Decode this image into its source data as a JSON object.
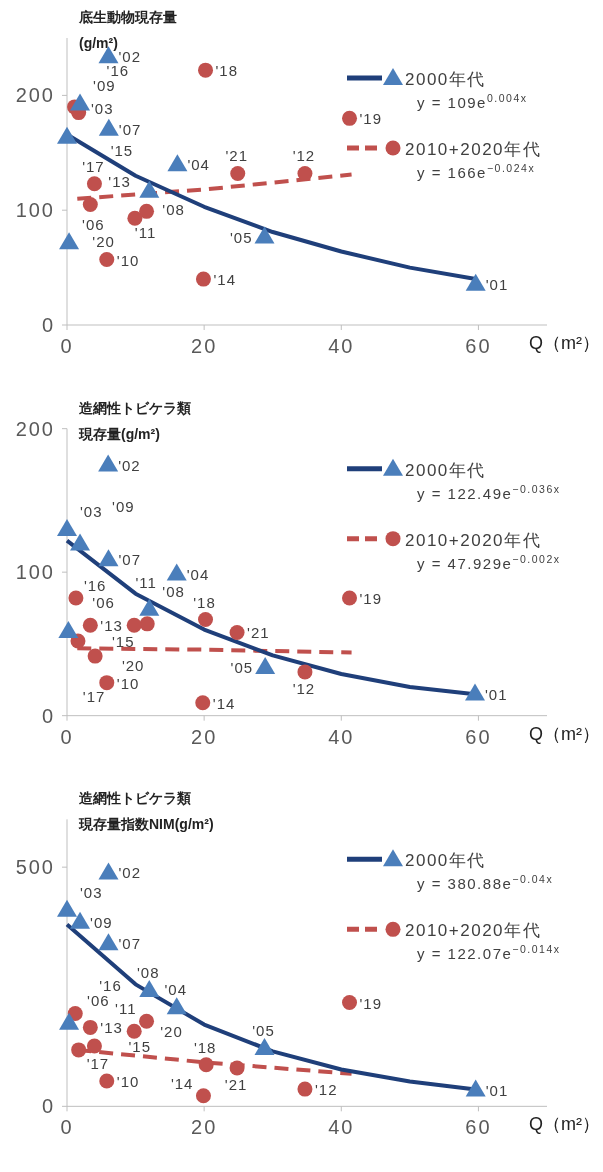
{
  "chart_data": [
    {
      "type": "scatter",
      "title": "底生動物現存量",
      "ylabel": "(g/m²)",
      "xlabel": "Q（m²）",
      "xlim": [
        0,
        70
      ],
      "xticks": [
        0,
        20,
        40,
        60
      ],
      "ylim": [
        0,
        250
      ],
      "yticks": [
        0,
        100,
        200
      ],
      "grid": false,
      "legend": "top right",
      "annotations": [
        "y = 109e$^{0.004x}$",
        "y = 166e$^{−0.024x}$",
        {
          "text": "'01",
          "x": 59.6,
          "y": 36
        },
        {
          "text": "'02",
          "x": 6.05,
          "y": 234
        },
        {
          "text": "'03",
          "x": 0,
          "y": 164
        },
        {
          "text": "'04",
          "x": 16.1,
          "y": 140
        },
        {
          "text": "'05",
          "x": 28.8,
          "y": 77
        },
        {
          "text": "'06",
          "x": 0.3,
          "y": 72
        },
        {
          "text": "'07",
          "x": 6.1,
          "y": 171
        },
        {
          "text": "'08",
          "x": 12.0,
          "y": 117
        },
        {
          "text": "'09",
          "x": 1.9,
          "y": 193
        },
        {
          "text": "'10",
          "x": 5.8,
          "y": 57
        },
        {
          "text": "'11",
          "x": 11.6,
          "y": 99
        },
        {
          "text": "'12",
          "x": 34.7,
          "y": 132
        },
        {
          "text": "'13",
          "x": 3.4,
          "y": 105
        },
        {
          "text": "'14",
          "x": 19.9,
          "y": 40
        },
        {
          "text": "'15",
          "x": 1.7,
          "y": 185
        },
        {
          "text": "'16",
          "x": 1.1,
          "y": 190
        },
        {
          "text": "'17",
          "x": 4.0,
          "y": 123
        },
        {
          "text": "'18",
          "x": 20.2,
          "y": 222
        },
        {
          "text": "'19",
          "x": 41.2,
          "y": 180
        },
        {
          "text": "'20",
          "x": 9.9,
          "y": 93
        },
        {
          "text": "'21",
          "x": 24.9,
          "y": 132
        }
      ],
      "series": [
        {
          "name": "2000年代",
          "type": "scatter",
          "marker": "triangle",
          "color": "#4a7ebb",
          "x": [
            59.6,
            6.05,
            0,
            16.1,
            28.8,
            0.3,
            6.1,
            12.0,
            1.9
          ],
          "values": [
            36,
            234,
            164,
            140,
            77,
            72,
            171,
            117,
            193
          ]
        },
        {
          "type": "line",
          "line_style": "solid",
          "color": "#1f3f7a",
          "x": [
            0,
            10,
            20,
            30,
            40,
            50,
            59.6
          ],
          "values": [
            166,
            130,
            103,
            81,
            64,
            50,
            40
          ]
        },
        {
          "name": "2010+2020年代",
          "type": "scatter",
          "marker": "circle",
          "color": "#c0504d",
          "x": [
            5.8,
            11.6,
            34.7,
            3.4,
            19.9,
            1.7,
            1.1,
            4.0,
            20.2,
            41.2,
            9.9,
            24.9
          ],
          "values": [
            57,
            99,
            132,
            105,
            40,
            185,
            190,
            123,
            222,
            180,
            93,
            132
          ]
        },
        {
          "type": "line",
          "line_style": "dashed",
          "color": "#c0504d",
          "x": [
            1.5,
            20,
            41.5
          ],
          "values": [
            110,
            118,
            131
          ]
        }
      ]
    },
    {
      "type": "scatter",
      "title": "造網性トビケラ類",
      "ylabel": "現存量(g/m²)",
      "xlabel": "Q（m²）",
      "xlim": [
        0,
        70
      ],
      "xticks": [
        0,
        20,
        40,
        60
      ],
      "ylim": [
        0,
        200
      ],
      "yticks": [
        0,
        100,
        200
      ],
      "grid": false,
      "legend": "top right",
      "annotations": [
        "y = 122.49e$^{−0.036x}$",
        "y = 47.929e$^{−0.002x}$",
        {
          "text": "'01",
          "x": 59.5,
          "y": 15.4
        },
        {
          "text": "'02",
          "x": 6.0,
          "y": 175
        },
        {
          "text": "'03",
          "x": 0,
          "y": 130
        },
        {
          "text": "'04",
          "x": 16.0,
          "y": 99
        },
        {
          "text": "'05",
          "x": 28.9,
          "y": 34
        },
        {
          "text": "'06",
          "x": 0.2,
          "y": 59
        },
        {
          "text": "'07",
          "x": 6.05,
          "y": 109
        },
        {
          "text": "'08",
          "x": 12.0,
          "y": 74.5
        },
        {
          "text": "'09",
          "x": 1.9,
          "y": 120
        },
        {
          "text": "'10",
          "x": 5.8,
          "y": 23
        },
        {
          "text": "'11",
          "x": 11.7,
          "y": 64
        },
        {
          "text": "'12",
          "x": 34.7,
          "y": 30.5
        },
        {
          "text": "'13",
          "x": 3.4,
          "y": 63
        },
        {
          "text": "'14",
          "x": 19.8,
          "y": 9
        },
        {
          "text": "'15",
          "x": 1.6,
          "y": 52
        },
        {
          "text": "'16",
          "x": 1.3,
          "y": 82
        },
        {
          "text": "'17",
          "x": 4.1,
          "y": 41.5
        },
        {
          "text": "'18",
          "x": 20.2,
          "y": 67
        },
        {
          "text": "'19",
          "x": 41.2,
          "y": 82
        },
        {
          "text": "'20",
          "x": 9.8,
          "y": 63
        },
        {
          "text": "'21",
          "x": 24.8,
          "y": 58
        }
      ],
      "series": [
        {
          "name": "2000年代",
          "type": "scatter",
          "marker": "triangle",
          "color": "#4a7ebb",
          "x": [
            59.5,
            6.0,
            0,
            16.0,
            28.9,
            0.2,
            6.05,
            12.0,
            1.9
          ],
          "values": [
            15.4,
            175,
            130,
            99,
            34,
            59,
            109,
            74.5,
            120
          ]
        },
        {
          "type": "line",
          "line_style": "solid",
          "color": "#1f3f7a",
          "x": [
            0,
            10,
            20,
            30,
            40,
            50,
            59.5
          ],
          "values": [
            122,
            85,
            60,
            42,
            29,
            20,
            15
          ]
        },
        {
          "name": "2010+2020年代",
          "type": "scatter",
          "marker": "circle",
          "color": "#c0504d",
          "x": [
            5.8,
            11.7,
            34.7,
            3.4,
            19.8,
            1.6,
            1.3,
            4.1,
            20.2,
            41.2,
            9.8,
            24.8
          ],
          "values": [
            23,
            64,
            30.5,
            63,
            9,
            52,
            82,
            41.5,
            67,
            82,
            63,
            58
          ]
        },
        {
          "type": "line",
          "line_style": "dashed",
          "color": "#c0504d",
          "x": [
            1.5,
            20,
            41.5
          ],
          "values": [
            47,
            46,
            44
          ]
        }
      ]
    },
    {
      "type": "scatter",
      "title": "造網性トビケラ類",
      "ylabel": "現存量指数NIM(g/m²)",
      "xlabel": "Q（m²）",
      "xlim": [
        0,
        70
      ],
      "xticks": [
        0,
        20,
        40,
        60
      ],
      "ylim": [
        0,
        600
      ],
      "yticks": [
        0,
        500
      ],
      "grid": false,
      "legend": "top right",
      "annotations": [
        "y = 380.88e$^{−0.04x}$",
        "y = 122.07e$^{−0.014x}$",
        {
          "text": "'01",
          "x": 59.6,
          "y": 35
        },
        {
          "text": "'02",
          "x": 6.05,
          "y": 489
        },
        {
          "text": "'03",
          "x": 0,
          "y": 411
        },
        {
          "text": "'04",
          "x": 16.0,
          "y": 207
        },
        {
          "text": "'05",
          "x": 28.8,
          "y": 122
        },
        {
          "text": "'06",
          "x": 0.3,
          "y": 175
        },
        {
          "text": "'07",
          "x": 6.05,
          "y": 341
        },
        {
          "text": "'08",
          "x": 12.0,
          "y": 243
        },
        {
          "text": "'09",
          "x": 1.9,
          "y": 386
        },
        {
          "text": "'10",
          "x": 5.8,
          "y": 53
        },
        {
          "text": "'11",
          "x": 11.6,
          "y": 178
        },
        {
          "text": "'12",
          "x": 34.7,
          "y": 36
        },
        {
          "text": "'13",
          "x": 3.4,
          "y": 165
        },
        {
          "text": "'14",
          "x": 19.9,
          "y": 22
        },
        {
          "text": "'15",
          "x": 4.0,
          "y": 126
        },
        {
          "text": "'16",
          "x": 1.2,
          "y": 194
        },
        {
          "text": "'17",
          "x": 1.7,
          "y": 118
        },
        {
          "text": "'18",
          "x": 20.3,
          "y": 87
        },
        {
          "text": "'19",
          "x": 41.2,
          "y": 217
        },
        {
          "text": "'20",
          "x": 9.8,
          "y": 157
        },
        {
          "text": "'21",
          "x": 24.8,
          "y": 80
        }
      ],
      "series": [
        {
          "name": "2000年代",
          "type": "scatter",
          "marker": "triangle",
          "color": "#4a7ebb",
          "x": [
            59.6,
            6.05,
            0,
            16.0,
            28.8,
            0.3,
            6.05,
            12.0,
            1.9
          ],
          "values": [
            35,
            489,
            411,
            207,
            122,
            175,
            341,
            243,
            386
          ]
        },
        {
          "type": "line",
          "line_style": "solid",
          "color": "#1f3f7a",
          "x": [
            0,
            10,
            20,
            30,
            40,
            50,
            59.6
          ],
          "values": [
            380,
            255,
            171,
            115,
            77,
            52,
            35
          ]
        },
        {
          "name": "2010+2020年代",
          "type": "scatter",
          "marker": "circle",
          "color": "#c0504d",
          "x": [
            5.8,
            11.6,
            34.7,
            3.4,
            19.9,
            4.0,
            1.2,
            1.7,
            20.3,
            41.2,
            9.8,
            24.8
          ],
          "values": [
            53,
            178,
            36,
            165,
            22,
            126,
            194,
            118,
            87,
            217,
            157,
            80
          ]
        },
        {
          "type": "line",
          "line_style": "dashed",
          "color": "#c0504d",
          "x": [
            1.5,
            20,
            41.5
          ],
          "values": [
            118,
            92,
            68
          ]
        }
      ]
    }
  ]
}
